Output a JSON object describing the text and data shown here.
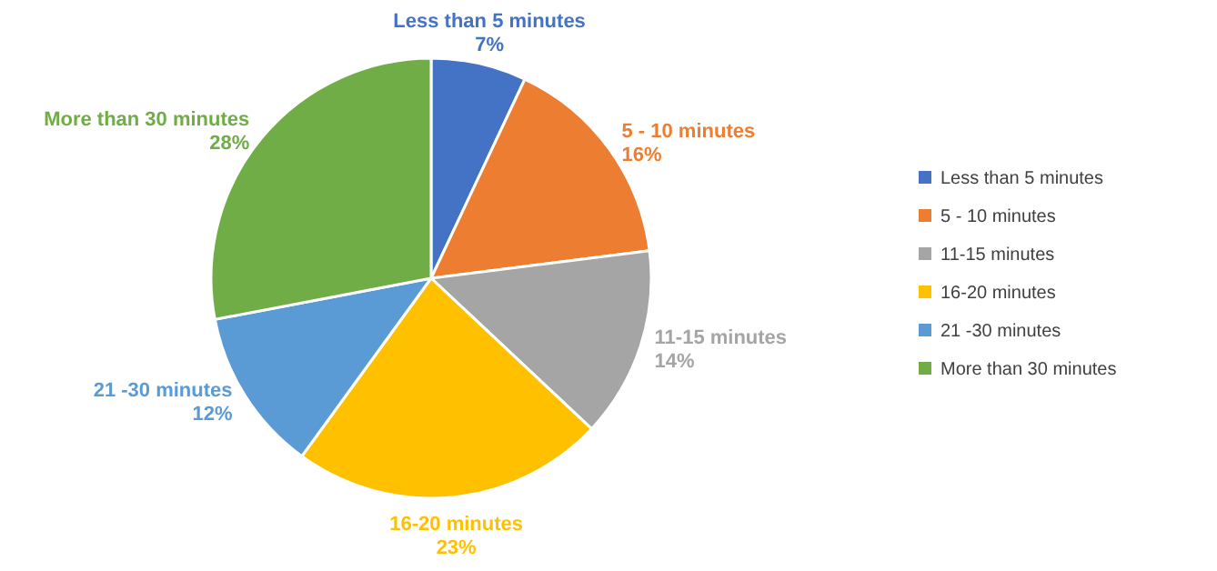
{
  "chart_data": {
    "type": "pie",
    "categories": [
      "Less than 5 minutes",
      "5 - 10 minutes",
      "11-15 minutes",
      "16-20 minutes",
      "21 -30 minutes",
      "More than 30 minutes"
    ],
    "values": [
      7,
      16,
      14,
      23,
      12,
      28
    ],
    "colors": [
      "#4472c4",
      "#ed7d31",
      "#a5a5a5",
      "#ffc000",
      "#5b9bd5",
      "#70ad47"
    ],
    "value_labels": [
      "7%",
      "16%",
      "14%",
      "23%",
      "12%",
      "28%"
    ],
    "legend": "right"
  }
}
